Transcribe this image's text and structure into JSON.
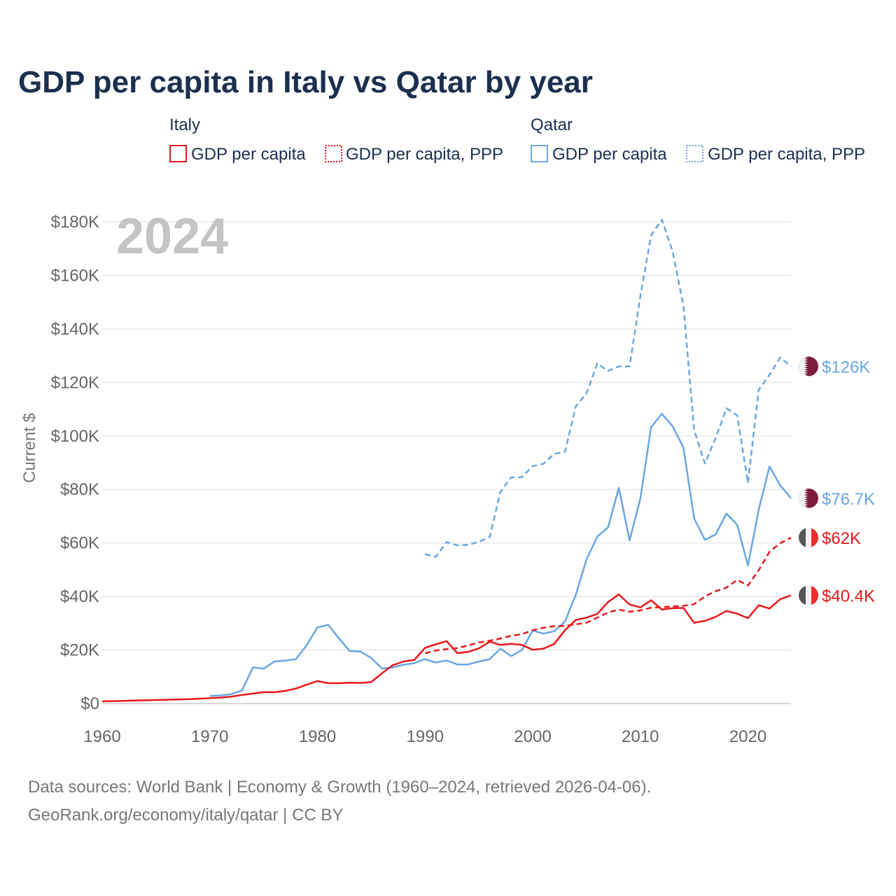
{
  "title": "GDP per capita in Italy vs Qatar by year",
  "year_watermark": "2024",
  "legend": {
    "italy": {
      "heading": "Italy",
      "gdp": "GDP per capita",
      "ppp": "GDP per capita, PPP"
    },
    "qatar": {
      "heading": "Qatar",
      "gdp": "GDP per capita",
      "ppp": "GDP per capita, PPP"
    }
  },
  "colors": {
    "italy": "#e8181b",
    "qatar": "#69a6e2",
    "text_dark": "#1b2f4f",
    "grid": "#e6e6e6",
    "qatar_flag": "#7b1c3e"
  },
  "icons": [
    "qatar-flag-icon",
    "italy-flag-icon"
  ],
  "footer": {
    "line1": "Data sources: World Bank | Economy & Growth (1960–2024, retrieved 2026-04-06).",
    "line2": "GeoRank.org/economy/italy/qatar | CC BY"
  },
  "chart_data": {
    "type": "line",
    "title": "GDP per capita in Italy vs Qatar by year",
    "ylabel": "Current $",
    "xlabel": "",
    "xlim": [
      1960,
      2024
    ],
    "ylim": [
      0,
      180000
    ],
    "x_ticks": [
      1960,
      1970,
      1980,
      1990,
      2000,
      2010,
      2020
    ],
    "x_tick_labels": [
      "1960",
      "1970",
      "1980",
      "1990",
      "2000",
      "2010",
      "2020"
    ],
    "y_ticks": [
      0,
      20000,
      40000,
      60000,
      80000,
      100000,
      120000,
      140000,
      160000,
      180000
    ],
    "y_tick_labels": [
      "$0",
      "$20K",
      "$40K",
      "$60K",
      "$80K",
      "$100K",
      "$120K",
      "$140K",
      "$160K",
      "$180K"
    ],
    "series": [
      {
        "name": "Italy GDP per capita",
        "country": "italy",
        "style": "solid",
        "end_label": "$40.4K",
        "x": [
          1960,
          1961,
          1962,
          1963,
          1964,
          1965,
          1966,
          1967,
          1968,
          1969,
          1970,
          1971,
          1972,
          1973,
          1974,
          1975,
          1976,
          1977,
          1978,
          1979,
          1980,
          1981,
          1982,
          1983,
          1984,
          1985,
          1986,
          1987,
          1988,
          1989,
          1990,
          1991,
          1992,
          1993,
          1994,
          1995,
          1996,
          1997,
          1998,
          1999,
          2000,
          2001,
          2002,
          2003,
          2004,
          2005,
          2006,
          2007,
          2008,
          2009,
          2010,
          2011,
          2012,
          2013,
          2014,
          2015,
          2016,
          2017,
          2018,
          2019,
          2020,
          2021,
          2022,
          2023,
          2024
        ],
        "values": [
          800,
          900,
          1000,
          1100,
          1200,
          1300,
          1400,
          1500,
          1600,
          1800,
          2000,
          2200,
          2600,
          3200,
          3700,
          4200,
          4200,
          4700,
          5600,
          7000,
          8400,
          7600,
          7600,
          7800,
          7700,
          8000,
          11300,
          14300,
          15700,
          16300,
          20800,
          22100,
          23300,
          18800,
          19300,
          20600,
          23100,
          21900,
          22300,
          21900,
          20100,
          20500,
          22300,
          27400,
          31200,
          32100,
          33500,
          37900,
          40800,
          37000,
          35900,
          38600,
          35100,
          35600,
          35700,
          30200,
          30900,
          32400,
          34600,
          33600,
          31900,
          36700,
          35500,
          39000,
          40400
        ]
      },
      {
        "name": "Italy GDP per capita, PPP",
        "country": "italy",
        "style": "dashed",
        "end_label": "$62K",
        "x": [
          1990,
          1991,
          1992,
          1993,
          1994,
          1995,
          1996,
          1997,
          1998,
          1999,
          2000,
          2001,
          2002,
          2003,
          2004,
          2005,
          2006,
          2007,
          2008,
          2009,
          2010,
          2011,
          2012,
          2013,
          2014,
          2015,
          2016,
          2017,
          2018,
          2019,
          2020,
          2021,
          2022,
          2023,
          2024
        ],
        "values": [
          18800,
          19800,
          20300,
          20700,
          21700,
          22800,
          23500,
          24300,
          25300,
          25900,
          27400,
          28300,
          28900,
          29000,
          29600,
          30200,
          32100,
          34000,
          35100,
          34300,
          34800,
          35800,
          36000,
          36300,
          36500,
          37100,
          40000,
          42000,
          43300,
          46200,
          44100,
          49800,
          56700,
          59900,
          62000
        ]
      },
      {
        "name": "Qatar GDP per capita",
        "country": "qatar",
        "style": "solid",
        "end_label": "$76.7K",
        "x": [
          1970,
          1971,
          1972,
          1973,
          1974,
          1975,
          1976,
          1977,
          1978,
          1979,
          1980,
          1981,
          1982,
          1983,
          1984,
          1985,
          1986,
          1987,
          1988,
          1989,
          1990,
          1991,
          1992,
          1993,
          1994,
          1995,
          1996,
          1997,
          1998,
          1999,
          2000,
          2001,
          2002,
          2003,
          2004,
          2005,
          2006,
          2007,
          2008,
          2009,
          2010,
          2011,
          2012,
          2013,
          2014,
          2015,
          2016,
          2017,
          2018,
          2019,
          2020,
          2021,
          2022,
          2023,
          2024
        ],
        "values": [
          2800,
          3000,
          3500,
          4900,
          13500,
          13000,
          15700,
          16000,
          16600,
          21800,
          28400,
          29400,
          24300,
          19600,
          19400,
          17000,
          13000,
          13500,
          14500,
          15100,
          16600,
          15300,
          16100,
          14600,
          14600,
          15700,
          16600,
          20500,
          17700,
          20000,
          27300,
          26100,
          27000,
          30600,
          40600,
          53800,
          62400,
          65800,
          80600,
          61000,
          76600,
          103200,
          108300,
          103600,
          95700,
          69200,
          61200,
          63200,
          71000,
          66800,
          51600,
          72500,
          88600,
          81500,
          76700
        ]
      },
      {
        "name": "Qatar GDP per capita, PPP",
        "country": "qatar",
        "style": "dashed",
        "end_label": "$126K",
        "x": [
          1990,
          1991,
          1992,
          1993,
          1994,
          1995,
          1996,
          1997,
          1998,
          1999,
          2000,
          2001,
          2002,
          2003,
          2004,
          2005,
          2006,
          2007,
          2008,
          2009,
          2010,
          2011,
          2012,
          2013,
          2014,
          2015,
          2016,
          2017,
          2018,
          2019,
          2020,
          2021,
          2022,
          2023,
          2024
        ],
        "values": [
          55800,
          54800,
          60300,
          59100,
          59300,
          60400,
          62200,
          79100,
          84500,
          84600,
          88700,
          89600,
          93300,
          94100,
          111000,
          115900,
          127100,
          124300,
          126000,
          126000,
          152200,
          174900,
          180800,
          169000,
          148700,
          102200,
          89700,
          99300,
          110300,
          107700,
          82400,
          117300,
          122800,
          129300,
          126000
        ]
      }
    ]
  }
}
